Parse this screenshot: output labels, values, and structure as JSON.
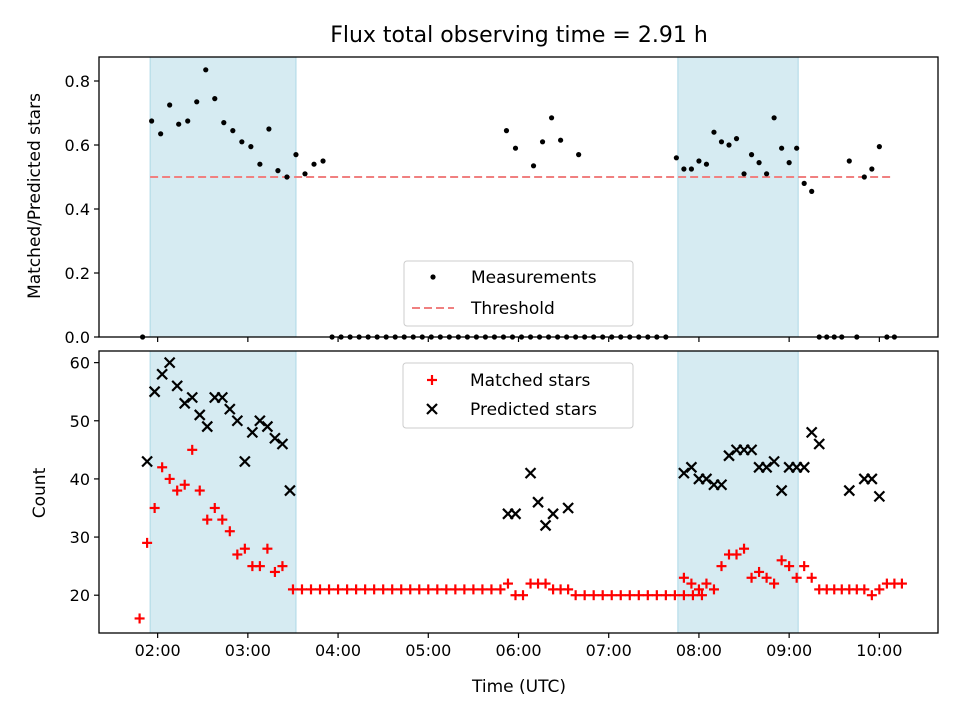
{
  "figure": {
    "title": "Flux total observing time = 2.91 h",
    "xlabel": "Time (UTC)",
    "x_ticks": [
      "02:00",
      "03:00",
      "04:00",
      "05:00",
      "06:00",
      "07:00",
      "08:00",
      "09:00",
      "10:00"
    ],
    "colors": {
      "shade": "#add8e6",
      "threshold": "#f08080",
      "matched": "#ff0000",
      "predicted": "#000000",
      "measurement": "#000000"
    }
  },
  "chart_data": [
    {
      "type": "scatter",
      "panel": "top",
      "ylabel": "Matched/Predicted stars",
      "xlim": [
        "01:21",
        "10:39"
      ],
      "ylim": [
        0,
        0.875
      ],
      "y_ticks": [
        "0.0",
        "0.2",
        "0.4",
        "0.6",
        "0.8"
      ],
      "y_tick_values": [
        0,
        0.2,
        0.4,
        0.6,
        0.8
      ],
      "legend": {
        "position": "lower center",
        "entries": [
          {
            "label": "Measurements",
            "marker": "dot"
          },
          {
            "label": "Threshold",
            "marker": "dashed-line"
          }
        ]
      },
      "shaded_spans": [
        [
          "01:55",
          "03:32"
        ],
        [
          "07:46",
          "09:06"
        ]
      ],
      "threshold": {
        "value": 0.5,
        "x_start": "01:55",
        "x_end": "10:08"
      },
      "series": [
        {
          "name": "Measurements",
          "points": [
            [
              "01:50",
              0.0
            ],
            [
              "01:56",
              0.675
            ],
            [
              "02:02",
              0.635
            ],
            [
              "02:08",
              0.725
            ],
            [
              "02:14",
              0.665
            ],
            [
              "02:20",
              0.675
            ],
            [
              "02:26",
              0.735
            ],
            [
              "02:32",
              0.835
            ],
            [
              "02:38",
              0.745
            ],
            [
              "02:44",
              0.67
            ],
            [
              "02:50",
              0.645
            ],
            [
              "02:56",
              0.61
            ],
            [
              "03:02",
              0.595
            ],
            [
              "03:08",
              0.54
            ],
            [
              "03:14",
              0.65
            ],
            [
              "03:20",
              0.52
            ],
            [
              "03:26",
              0.5
            ],
            [
              "03:32",
              0.57
            ],
            [
              "03:38",
              0.51
            ],
            [
              "03:44",
              0.54
            ],
            [
              "03:50",
              0.55
            ],
            [
              "03:56",
              0.0
            ],
            [
              "04:02",
              0.0
            ],
            [
              "04:08",
              0.0
            ],
            [
              "04:14",
              0.0
            ],
            [
              "04:20",
              0.0
            ],
            [
              "04:26",
              0.0
            ],
            [
              "04:32",
              0.0
            ],
            [
              "04:38",
              0.0
            ],
            [
              "04:44",
              0.0
            ],
            [
              "04:50",
              0.0
            ],
            [
              "04:56",
              0.0
            ],
            [
              "05:02",
              0.0
            ],
            [
              "05:08",
              0.0
            ],
            [
              "05:14",
              0.0
            ],
            [
              "05:20",
              0.0
            ],
            [
              "05:26",
              0.0
            ],
            [
              "05:32",
              0.0
            ],
            [
              "05:38",
              0.0
            ],
            [
              "05:44",
              0.0
            ],
            [
              "05:50",
              0.0
            ],
            [
              "05:56",
              0.0
            ],
            [
              "06:02",
              0.0
            ],
            [
              "06:08",
              0.0
            ],
            [
              "06:14",
              0.0
            ],
            [
              "06:20",
              0.0
            ],
            [
              "06:26",
              0.0
            ],
            [
              "06:32",
              0.0
            ],
            [
              "06:38",
              0.0
            ],
            [
              "06:44",
              0.0
            ],
            [
              "06:50",
              0.0
            ],
            [
              "06:56",
              0.0
            ],
            [
              "07:02",
              0.0
            ],
            [
              "07:08",
              0.0
            ],
            [
              "07:14",
              0.0
            ],
            [
              "07:20",
              0.0
            ],
            [
              "07:26",
              0.0
            ],
            [
              "07:32",
              0.0
            ],
            [
              "07:38",
              0.0
            ],
            [
              "05:52",
              0.645
            ],
            [
              "05:58",
              0.59
            ],
            [
              "06:10",
              0.535
            ],
            [
              "06:16",
              0.61
            ],
            [
              "06:22",
              0.685
            ],
            [
              "06:28",
              0.615
            ],
            [
              "06:40",
              0.57
            ],
            [
              "07:45",
              0.56
            ],
            [
              "07:50",
              0.525
            ],
            [
              "07:55",
              0.525
            ],
            [
              "08:00",
              0.55
            ],
            [
              "08:05",
              0.54
            ],
            [
              "08:10",
              0.64
            ],
            [
              "08:15",
              0.61
            ],
            [
              "08:20",
              0.6
            ],
            [
              "08:25",
              0.62
            ],
            [
              "08:30",
              0.51
            ],
            [
              "08:35",
              0.57
            ],
            [
              "08:40",
              0.545
            ],
            [
              "08:45",
              0.51
            ],
            [
              "08:50",
              0.685
            ],
            [
              "08:55",
              0.59
            ],
            [
              "09:00",
              0.545
            ],
            [
              "09:05",
              0.59
            ],
            [
              "09:10",
              0.48
            ],
            [
              "09:15",
              0.455
            ],
            [
              "09:20",
              0.0
            ],
            [
              "09:25",
              0.0
            ],
            [
              "09:30",
              0.0
            ],
            [
              "09:35",
              0.0
            ],
            [
              "09:40",
              0.55
            ],
            [
              "09:45",
              0.0
            ],
            [
              "09:50",
              0.5
            ],
            [
              "09:55",
              0.525
            ],
            [
              "10:00",
              0.595
            ],
            [
              "10:05",
              0.0
            ],
            [
              "10:10",
              0.0
            ]
          ]
        }
      ]
    },
    {
      "type": "scatter",
      "panel": "bottom",
      "ylabel": "Count",
      "xlim": [
        "01:21",
        "10:39"
      ],
      "ylim": [
        13.5,
        62
      ],
      "y_ticks": [
        "20",
        "30",
        "40",
        "50",
        "60"
      ],
      "y_tick_values": [
        20,
        30,
        40,
        50,
        60
      ],
      "legend": {
        "position": "upper center",
        "entries": [
          {
            "label": "Matched stars",
            "marker": "plus"
          },
          {
            "label": "Predicted stars",
            "marker": "x"
          }
        ]
      },
      "shaded_spans": [
        [
          "01:55",
          "03:32"
        ],
        [
          "07:46",
          "09:06"
        ]
      ],
      "series": [
        {
          "name": "Matched stars",
          "points": [
            [
              "01:48",
              16
            ],
            [
              "01:53",
              29
            ],
            [
              "01:58",
              35
            ],
            [
              "02:03",
              42
            ],
            [
              "02:08",
              40
            ],
            [
              "02:13",
              38
            ],
            [
              "02:18",
              39
            ],
            [
              "02:23",
              45
            ],
            [
              "02:28",
              38
            ],
            [
              "02:33",
              33
            ],
            [
              "02:38",
              35
            ],
            [
              "02:43",
              33
            ],
            [
              "02:48",
              31
            ],
            [
              "02:53",
              27
            ],
            [
              "02:58",
              28
            ],
            [
              "03:03",
              25
            ],
            [
              "03:08",
              25
            ],
            [
              "03:13",
              28
            ],
            [
              "03:18",
              24
            ],
            [
              "03:23",
              25
            ],
            [
              "03:30",
              21
            ],
            [
              "03:36",
              21
            ],
            [
              "03:42",
              21
            ],
            [
              "03:48",
              21
            ],
            [
              "03:54",
              21
            ],
            [
              "04:00",
              21
            ],
            [
              "04:06",
              21
            ],
            [
              "04:12",
              21
            ],
            [
              "04:18",
              21
            ],
            [
              "04:24",
              21
            ],
            [
              "04:30",
              21
            ],
            [
              "04:36",
              21
            ],
            [
              "04:42",
              21
            ],
            [
              "04:48",
              21
            ],
            [
              "04:54",
              21
            ],
            [
              "05:00",
              21
            ],
            [
              "05:06",
              21
            ],
            [
              "05:12",
              21
            ],
            [
              "05:18",
              21
            ],
            [
              "05:24",
              21
            ],
            [
              "05:30",
              21
            ],
            [
              "05:36",
              21
            ],
            [
              "05:42",
              21
            ],
            [
              "05:48",
              21
            ],
            [
              "05:53",
              22
            ],
            [
              "05:58",
              20
            ],
            [
              "06:03",
              20
            ],
            [
              "06:08",
              22
            ],
            [
              "06:13",
              22
            ],
            [
              "06:18",
              22
            ],
            [
              "06:23",
              21
            ],
            [
              "06:28",
              21
            ],
            [
              "06:33",
              21
            ],
            [
              "06:38",
              20
            ],
            [
              "06:44",
              20
            ],
            [
              "06:50",
              20
            ],
            [
              "06:56",
              20
            ],
            [
              "07:02",
              20
            ],
            [
              "07:08",
              20
            ],
            [
              "07:14",
              20
            ],
            [
              "07:20",
              20
            ],
            [
              "07:26",
              20
            ],
            [
              "07:32",
              20
            ],
            [
              "07:38",
              20
            ],
            [
              "07:44",
              20
            ],
            [
              "07:50",
              20
            ],
            [
              "07:56",
              20
            ],
            [
              "08:02",
              20
            ],
            [
              "07:50",
              23
            ],
            [
              "07:55",
              22
            ],
            [
              "08:00",
              21
            ],
            [
              "08:05",
              22
            ],
            [
              "08:10",
              21
            ],
            [
              "08:15",
              25
            ],
            [
              "08:20",
              27
            ],
            [
              "08:25",
              27
            ],
            [
              "08:30",
              28
            ],
            [
              "08:35",
              23
            ],
            [
              "08:40",
              24
            ],
            [
              "08:45",
              23
            ],
            [
              "08:50",
              22
            ],
            [
              "08:55",
              26
            ],
            [
              "09:00",
              25
            ],
            [
              "09:05",
              23
            ],
            [
              "09:10",
              25
            ],
            [
              "09:15",
              23
            ],
            [
              "09:20",
              21
            ],
            [
              "09:25",
              21
            ],
            [
              "09:30",
              21
            ],
            [
              "09:35",
              21
            ],
            [
              "09:40",
              21
            ],
            [
              "09:45",
              21
            ],
            [
              "09:50",
              21
            ],
            [
              "09:55",
              20
            ],
            [
              "10:00",
              21
            ],
            [
              "10:05",
              22
            ],
            [
              "10:10",
              22
            ],
            [
              "10:15",
              22
            ]
          ]
        },
        {
          "name": "Predicted stars",
          "points": [
            [
              "01:53",
              43
            ],
            [
              "01:58",
              55
            ],
            [
              "02:03",
              58
            ],
            [
              "02:08",
              60
            ],
            [
              "02:13",
              56
            ],
            [
              "02:18",
              53
            ],
            [
              "02:23",
              54
            ],
            [
              "02:28",
              51
            ],
            [
              "02:33",
              49
            ],
            [
              "02:38",
              54
            ],
            [
              "02:43",
              54
            ],
            [
              "02:48",
              52
            ],
            [
              "02:53",
              50
            ],
            [
              "02:58",
              43
            ],
            [
              "03:03",
              48
            ],
            [
              "03:08",
              50
            ],
            [
              "03:13",
              49
            ],
            [
              "03:18",
              47
            ],
            [
              "03:23",
              46
            ],
            [
              "03:28",
              38
            ],
            [
              "05:53",
              34
            ],
            [
              "05:58",
              34
            ],
            [
              "06:08",
              41
            ],
            [
              "06:13",
              36
            ],
            [
              "06:18",
              32
            ],
            [
              "06:23",
              34
            ],
            [
              "06:33",
              35
            ],
            [
              "07:50",
              41
            ],
            [
              "07:55",
              42
            ],
            [
              "08:00",
              40
            ],
            [
              "08:05",
              40
            ],
            [
              "08:10",
              39
            ],
            [
              "08:15",
              39
            ],
            [
              "08:20",
              44
            ],
            [
              "08:25",
              45
            ],
            [
              "08:30",
              45
            ],
            [
              "08:35",
              45
            ],
            [
              "08:40",
              42
            ],
            [
              "08:45",
              42
            ],
            [
              "08:50",
              43
            ],
            [
              "08:55",
              38
            ],
            [
              "09:00",
              42
            ],
            [
              "09:05",
              42
            ],
            [
              "09:10",
              42
            ],
            [
              "09:15",
              48
            ],
            [
              "09:20",
              46
            ],
            [
              "09:40",
              38
            ],
            [
              "09:50",
              40
            ],
            [
              "09:55",
              40
            ],
            [
              "10:00",
              37
            ]
          ]
        }
      ]
    }
  ]
}
